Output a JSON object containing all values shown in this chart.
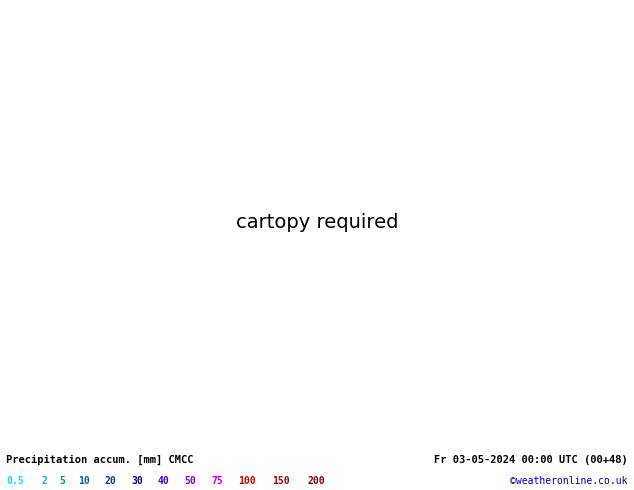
{
  "title_left": "Precipitation accum. [mm] CMCC",
  "title_right": "Fr 03-05-2024 00:00 UTC (00+48)",
  "credit": "©weatheronline.co.uk",
  "legend_values": [
    "0.5",
    "2",
    "5",
    "10",
    "20",
    "30",
    "40",
    "50",
    "75",
    "100",
    "150",
    "200"
  ],
  "legend_colors": [
    "#00e5ff",
    "#00b8e0",
    "#0090c8",
    "#0060b0",
    "#003898",
    "#000080",
    "#4400cc",
    "#8800cc",
    "#cc00cc",
    "#cc0000",
    "#aa0000",
    "#880000"
  ],
  "bg_color": "#c8c8c8",
  "land_color_green": "#b4d47c",
  "land_color_gray": "#c8c8c8",
  "sea_color": "#e0eff8",
  "isobar_blue_color": "#0000b0",
  "isobar_red_color": "#b00000",
  "figsize": [
    6.34,
    4.9
  ],
  "dpi": 100,
  "extent": [
    95,
    165,
    0,
    55
  ],
  "precip_levels": [
    0.5,
    2,
    5,
    10,
    20,
    30,
    40,
    50,
    75,
    100,
    150,
    200
  ],
  "precip_colors_fill": [
    "#b3f0ff",
    "#80dfff",
    "#4dc8f0",
    "#26aae0",
    "#0080d0",
    "#0050b0",
    "#3030b8",
    "#6000c0",
    "#a000c0",
    "#c80000",
    "#a00000",
    "#780000"
  ]
}
